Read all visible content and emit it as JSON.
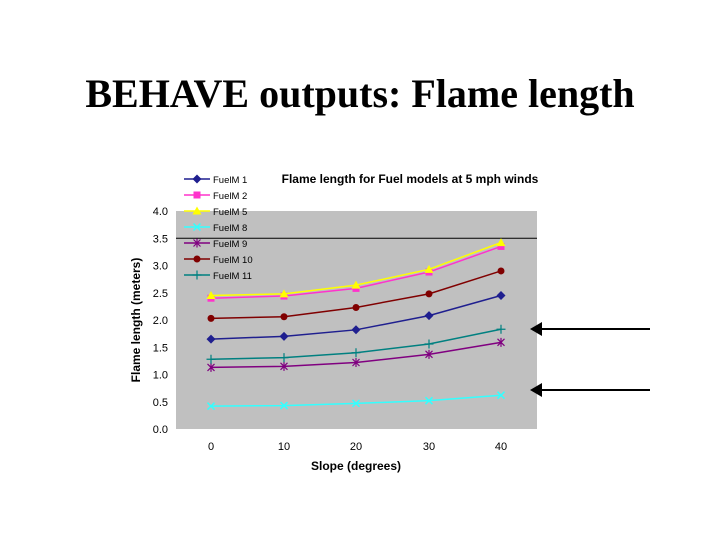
{
  "slide": {
    "title": "BEHAVE outputs: Flame length"
  },
  "chart_data": {
    "type": "line",
    "title": "Flame length for Fuel models at 5 mph winds",
    "xlabel": "Slope (degrees)",
    "ylabel": "Flame length (meters)",
    "categories": [
      "0",
      "10",
      "20",
      "30",
      "40"
    ],
    "ylim": [
      0,
      4
    ],
    "yticks": [
      "0.0",
      "0.5",
      "1.0",
      "1.5",
      "2.0",
      "2.5",
      "3.0",
      "3.5",
      "4.0"
    ],
    "grid": "single line at 3.5",
    "legend": "top-left",
    "series": [
      {
        "name": "FuelM 1",
        "color": "#1f1f8f",
        "marker": "diamond",
        "values": [
          1.65,
          1.7,
          1.82,
          2.08,
          2.45
        ]
      },
      {
        "name": "FuelM 2",
        "color": "#ff33cc",
        "marker": "square",
        "values": [
          2.4,
          2.44,
          2.58,
          2.88,
          3.35
        ]
      },
      {
        "name": "FuelM 5",
        "color": "#ffff00",
        "marker": "triangle",
        "values": [
          2.45,
          2.48,
          2.64,
          2.93,
          3.42
        ]
      },
      {
        "name": "FuelM 8",
        "color": "#33ffff",
        "marker": "x",
        "values": [
          0.42,
          0.43,
          0.47,
          0.52,
          0.62
        ]
      },
      {
        "name": "FuelM 9",
        "color": "#800080",
        "marker": "star",
        "values": [
          1.13,
          1.15,
          1.22,
          1.37,
          1.59
        ]
      },
      {
        "name": "FuelM 10",
        "color": "#800000",
        "marker": "circle",
        "values": [
          2.03,
          2.06,
          2.23,
          2.48,
          2.9
        ]
      },
      {
        "name": "FuelM 11",
        "color": "#008080",
        "marker": "plus",
        "values": [
          1.28,
          1.31,
          1.4,
          1.56,
          1.83
        ]
      }
    ]
  }
}
